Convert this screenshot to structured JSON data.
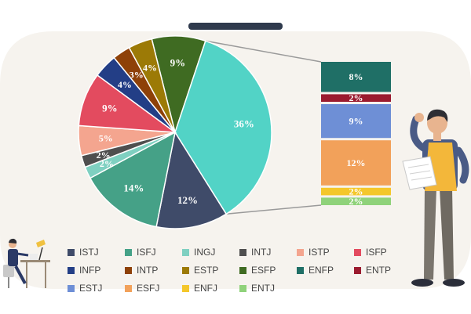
{
  "chart_data": {
    "type": "pie",
    "title": "",
    "slices": [
      {
        "label": "ESFP",
        "value": 9,
        "display": "9%",
        "color": "#3f6b22"
      },
      {
        "label": "ESTJ+ESFJ+ENTP+ENFP+ENTJ+ENFJ",
        "value": 36,
        "display": "36%",
        "color": "#52d3c6"
      },
      {
        "label": "ISTJ",
        "value": 12,
        "display": "12%",
        "color": "#3f4b69"
      },
      {
        "label": "ISFJ",
        "value": 14,
        "display": "14%",
        "color": "#45a187"
      },
      {
        "label": "INGJ",
        "value": 2,
        "display": "2%",
        "color": "#7fd0c1"
      },
      {
        "label": "INTJ",
        "value": 2,
        "display": "2%",
        "color": "#4f4f4f"
      },
      {
        "label": "ISTP",
        "value": 5,
        "display": "5%",
        "color": "#f4a58f"
      },
      {
        "label": "ISFP",
        "value": 9,
        "display": "9%",
        "color": "#e34b5f"
      },
      {
        "label": "INFP",
        "value": 4,
        "display": "4%",
        "color": "#233e86"
      },
      {
        "label": "INTP",
        "value": 3,
        "display": "3%",
        "color": "#8e4108"
      },
      {
        "label": "ESTP",
        "value": 4,
        "display": "4%",
        "color": "#9c7a06"
      }
    ],
    "breakdown": [
      {
        "label": "ENFP",
        "value": 8,
        "display": "8%",
        "color": "#1f6f66"
      },
      {
        "label": "ENTP",
        "value": 2,
        "display": "2%",
        "color": "#9b1b2f"
      },
      {
        "label": "ESTJ",
        "value": 9,
        "display": "9%",
        "color": "#6e8fd6"
      },
      {
        "label": "ESFJ",
        "value": 12,
        "display": "12%",
        "color": "#f2a15a"
      },
      {
        "label": "ENFJ",
        "value": 2,
        "display": "2%",
        "color": "#f4c72b"
      },
      {
        "label": "ENTJ",
        "value": 2,
        "display": "2%",
        "color": "#8fd27a"
      }
    ],
    "legend": [
      {
        "label": "ISTJ",
        "color": "#3f4b69"
      },
      {
        "label": "ISFJ",
        "color": "#45a187"
      },
      {
        "label": "INGJ",
        "color": "#7fd0c1"
      },
      {
        "label": "INTJ",
        "color": "#4f4f4f"
      },
      {
        "label": "ISTP",
        "color": "#f4a58f"
      },
      {
        "label": "ISFP",
        "color": "#e34b5f"
      },
      {
        "label": "INFP",
        "color": "#233e86"
      },
      {
        "label": "INTP",
        "color": "#8e4108"
      },
      {
        "label": "ESTP",
        "color": "#9c7a06"
      },
      {
        "label": "ESFP",
        "color": "#3f6b22"
      },
      {
        "label": "ENFP",
        "color": "#1f6f66"
      },
      {
        "label": "ENTP",
        "color": "#9b1b2f"
      },
      {
        "label": "ESTJ",
        "color": "#6e8fd6"
      },
      {
        "label": "ESFJ",
        "color": "#f2a15a"
      },
      {
        "label": "ENFJ",
        "color": "#f4c72b"
      },
      {
        "label": "ENTJ",
        "color": "#8fd27a"
      }
    ],
    "legend_placement": "bottom"
  },
  "colors": {
    "card": "#f6f3ee",
    "connector": "#9a9a9a",
    "tab": "#2f3a4d"
  }
}
